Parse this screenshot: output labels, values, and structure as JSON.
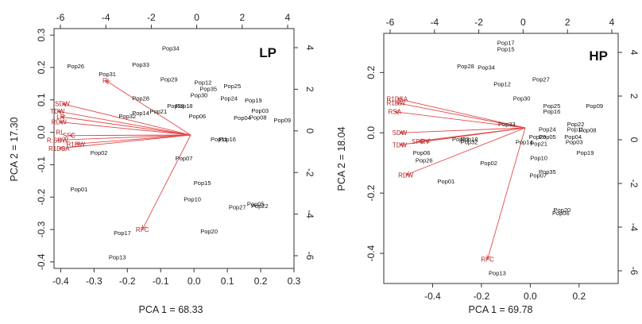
{
  "chart_data": [
    {
      "type": "scatter",
      "title": "LP",
      "xlabel": "PCA 1 = 68.33",
      "ylabel": "PCA 2 = 17.30",
      "xlim": [
        -0.42,
        0.3
      ],
      "ylim": [
        -0.42,
        0.32
      ],
      "xticks": [
        "-0.4",
        "-0.3",
        "-0.2",
        "-0.1",
        "0.0",
        "0.1",
        "0.2",
        "0.3"
      ],
      "yticks": [
        "-0.4",
        "-0.3",
        "-0.2",
        "-0.1",
        "0.0",
        "0.1",
        "0.2",
        "0.3"
      ],
      "top_ticks": [
        "-6",
        "-4",
        "-2",
        "0",
        "2",
        "4"
      ],
      "right_ticks": [
        "-6",
        "-4",
        "-2",
        "0",
        "2",
        "4"
      ],
      "scores": [
        {
          "label": "Pop26",
          "x": -0.355,
          "y": 0.205
        },
        {
          "label": "Pop31",
          "x": -0.26,
          "y": 0.18
        },
        {
          "label": "Pop33",
          "x": -0.16,
          "y": 0.21
        },
        {
          "label": "Pop34",
          "x": -0.07,
          "y": 0.26
        },
        {
          "label": "Pop29",
          "x": -0.075,
          "y": 0.165
        },
        {
          "label": "Pop12",
          "x": 0.027,
          "y": 0.155
        },
        {
          "label": "Pop35",
          "x": 0.043,
          "y": 0.135
        },
        {
          "label": "Pop25",
          "x": 0.115,
          "y": 0.143
        },
        {
          "label": "Pop30",
          "x": 0.015,
          "y": 0.115
        },
        {
          "label": "Pop28",
          "x": -0.16,
          "y": 0.105
        },
        {
          "label": "Pop24",
          "x": 0.105,
          "y": 0.105
        },
        {
          "label": "Pop19",
          "x": 0.178,
          "y": 0.1
        },
        {
          "label": "Pop20",
          "x": -0.055,
          "y": 0.082
        },
        {
          "label": "Pop18",
          "x": -0.03,
          "y": 0.082
        },
        {
          "label": "Pop14",
          "x": -0.16,
          "y": 0.06
        },
        {
          "label": "Pop21",
          "x": -0.107,
          "y": 0.065
        },
        {
          "label": "Pop32",
          "x": -0.2,
          "y": 0.05
        },
        {
          "label": "Pop03",
          "x": 0.198,
          "y": 0.068
        },
        {
          "label": "Pop06",
          "x": 0.01,
          "y": 0.05
        },
        {
          "label": "Pop04",
          "x": 0.145,
          "y": 0.045
        },
        {
          "label": "Pop08",
          "x": 0.192,
          "y": 0.047
        },
        {
          "label": "Pop09",
          "x": 0.265,
          "y": 0.038
        },
        {
          "label": "Pop11",
          "x": 0.075,
          "y": -0.02
        },
        {
          "label": "Pop16",
          "x": 0.1,
          "y": -0.02
        },
        {
          "label": "Pop02",
          "x": -0.285,
          "y": -0.062
        },
        {
          "label": "Pop07",
          "x": -0.03,
          "y": -0.08
        },
        {
          "label": "Pop15",
          "x": 0.025,
          "y": -0.155
        },
        {
          "label": "Pop01",
          "x": -0.345,
          "y": -0.175
        },
        {
          "label": "Pop10",
          "x": -0.005,
          "y": -0.205
        },
        {
          "label": "Pop05",
          "x": 0.185,
          "y": -0.22
        },
        {
          "label": "Pop22",
          "x": 0.197,
          "y": -0.227
        },
        {
          "label": "Pop27",
          "x": 0.13,
          "y": -0.23
        },
        {
          "label": "Pop20",
          "x": 0.045,
          "y": -0.305
        },
        {
          "label": "Pop17",
          "x": -0.215,
          "y": -0.31
        },
        {
          "label": "Pop13",
          "x": -0.23,
          "y": -0.385
        }
      ],
      "loadings": [
        {
          "label": "RI",
          "x": -0.265,
          "y": 0.16
        },
        {
          "label": "SDW",
          "x": -0.395,
          "y": 0.088
        },
        {
          "label": "TDW",
          "x": -0.41,
          "y": 0.065
        },
        {
          "label": "LR",
          "x": -0.4,
          "y": 0.048
        },
        {
          "label": "RDW",
          "x": -0.405,
          "y": 0.032
        },
        {
          "label": "SFC",
          "x": -0.375,
          "y": -0.01
        },
        {
          "label": "R:SDW",
          "x": -0.41,
          "y": -0.024
        },
        {
          "label": "R1DW",
          "x": -0.355,
          "y": -0.036
        },
        {
          "label": "R1DSA",
          "x": -0.405,
          "y": -0.05
        },
        {
          "label": "RFC",
          "x": -0.155,
          "y": -0.3
        }
      ],
      "loadings_extra_label": "RL"
    },
    {
      "type": "scatter",
      "title": "HP",
      "xlabel": "PCA 1 = 69.78",
      "ylabel": "PCA 2 = 18.04",
      "xlim": [
        -0.6,
        0.36
      ],
      "ylim": [
        -0.5,
        0.33
      ],
      "xticks": [
        "-0.4",
        "-0.2",
        "0.0",
        "0.2"
      ],
      "yticks": [
        "-0.4",
        "-0.2",
        "0.0",
        "0.2"
      ],
      "top_ticks": [
        "-6",
        "-4",
        "-2",
        "0",
        "2",
        "4"
      ],
      "right_ticks": [
        "-6",
        "-4",
        "-2",
        "0",
        "2",
        "4"
      ],
      "scores": [
        {
          "label": "Pop17",
          "x": -0.1,
          "y": 0.3
        },
        {
          "label": "Pop15",
          "x": -0.1,
          "y": 0.278
        },
        {
          "label": "Pop28",
          "x": -0.265,
          "y": 0.222
        },
        {
          "label": "Pop34",
          "x": -0.18,
          "y": 0.218
        },
        {
          "label": "Pop12",
          "x": -0.115,
          "y": 0.163
        },
        {
          "label": "Pop27",
          "x": 0.044,
          "y": 0.178
        },
        {
          "label": "Pop30",
          "x": -0.035,
          "y": 0.115
        },
        {
          "label": "Pop09",
          "x": 0.263,
          "y": 0.09
        },
        {
          "label": "Pop25",
          "x": 0.088,
          "y": 0.09
        },
        {
          "label": "Pop16",
          "x": 0.088,
          "y": 0.072
        },
        {
          "label": "Pop33",
          "x": -0.096,
          "y": 0.03
        },
        {
          "label": "Pop22",
          "x": 0.186,
          "y": 0.03
        },
        {
          "label": "Pop24",
          "x": 0.07,
          "y": 0.012
        },
        {
          "label": "Pop11",
          "x": 0.185,
          "y": 0.013
        },
        {
          "label": "Pop08",
          "x": 0.235,
          "y": 0.01
        },
        {
          "label": "Pop29",
          "x": 0.03,
          "y": -0.012
        },
        {
          "label": "Pop05",
          "x": 0.07,
          "y": -0.012
        },
        {
          "label": "Pop04",
          "x": 0.175,
          "y": -0.012
        },
        {
          "label": "Pop23",
          "x": -0.285,
          "y": -0.02
        },
        {
          "label": "Pop18",
          "x": -0.25,
          "y": -0.02
        },
        {
          "label": "Pop14",
          "x": -0.025,
          "y": -0.03
        },
        {
          "label": "Pop21",
          "x": 0.035,
          "y": -0.035
        },
        {
          "label": "Pop32",
          "x": -0.25,
          "y": -0.03
        },
        {
          "label": "Pop03",
          "x": 0.18,
          "y": -0.03
        },
        {
          "label": "Pop19",
          "x": 0.225,
          "y": -0.065
        },
        {
          "label": "Pop06",
          "x": -0.445,
          "y": -0.065
        },
        {
          "label": "Pop10",
          "x": 0.035,
          "y": -0.082
        },
        {
          "label": "Pop26",
          "x": -0.435,
          "y": -0.09
        },
        {
          "label": "Pop02",
          "x": -0.17,
          "y": -0.1
        },
        {
          "label": "Pop35",
          "x": 0.07,
          "y": -0.128
        },
        {
          "label": "Pop07",
          "x": 0.032,
          "y": -0.14
        },
        {
          "label": "Pop01",
          "x": -0.345,
          "y": -0.16
        },
        {
          "label": "Pop20",
          "x": 0.13,
          "y": -0.255
        },
        {
          "label": "Pop06",
          "x": 0.125,
          "y": -0.265
        },
        {
          "label": "Pop13",
          "x": -0.135,
          "y": -0.465
        }
      ],
      "loadings": [
        {
          "label": "R1DSA",
          "x": -0.545,
          "y": 0.113
        },
        {
          "label": "R1DW",
          "x": -0.55,
          "y": 0.1
        },
        {
          "label": "RSA",
          "x": -0.555,
          "y": 0.07
        },
        {
          "label": "SDW",
          "x": -0.535,
          "y": 0.0
        },
        {
          "label": "SFC",
          "x": -0.46,
          "y": -0.028
        },
        {
          "label": "RV",
          "x": -0.43,
          "y": -0.028
        },
        {
          "label": "TDW",
          "x": -0.535,
          "y": -0.04
        },
        {
          "label": "RDW",
          "x": -0.51,
          "y": -0.14
        },
        {
          "label": "RFC",
          "x": -0.175,
          "y": -0.42
        }
      ]
    }
  ]
}
